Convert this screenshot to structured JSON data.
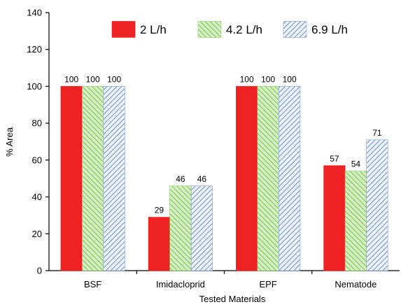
{
  "chart_data": {
    "type": "bar",
    "title": "",
    "xlabel": "Tested Materials",
    "ylabel": "% Area",
    "ylim": [
      0,
      140
    ],
    "yticks": [
      0,
      20,
      40,
      60,
      80,
      100,
      120,
      140
    ],
    "categories": [
      "BSF",
      "Imidacloprid",
      "EPF",
      "Nematode"
    ],
    "series": [
      {
        "name": "2 L/h",
        "values": [
          100,
          29,
          100,
          57
        ],
        "color": "#ee2222",
        "pattern": "solid"
      },
      {
        "name": "4.2 L/h",
        "values": [
          100,
          46,
          100,
          54
        ],
        "color": "#7ec850",
        "pattern": "green-hatch"
      },
      {
        "name": "6.9 L/h",
        "values": [
          100,
          46,
          100,
          71
        ],
        "color": "#5b86c8",
        "pattern": "blue-hatch"
      }
    ],
    "data_labels": true,
    "legend_position": "top",
    "grid": false
  }
}
